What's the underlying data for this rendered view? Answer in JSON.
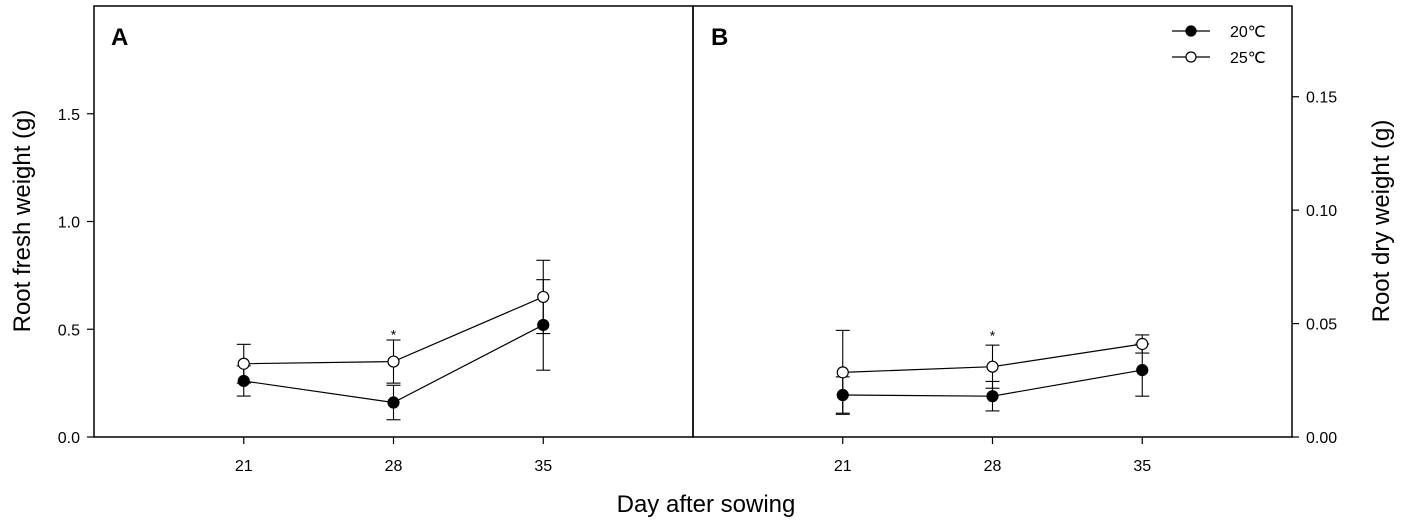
{
  "chart_data": [
    {
      "type": "line",
      "panel_label": "A",
      "xlabel": "Day after sowing",
      "ylabel": "Root fresh weight (g)",
      "y_axis_side": "left",
      "categories": [
        "21",
        "28",
        "35"
      ],
      "x": [
        21,
        28,
        35
      ],
      "xlim": [
        14,
        42
      ],
      "ylim": [
        0,
        2.0
      ],
      "yticks": [
        "0.0",
        "0.5",
        "1.0",
        "1.5"
      ],
      "ytick_values": [
        0,
        0.5,
        1.0,
        1.5
      ],
      "grid": false,
      "series": [
        {
          "name": "20℃",
          "marker": "filled-circle",
          "values": [
            0.26,
            0.16,
            0.52
          ],
          "errors": [
            0.07,
            0.08,
            0.21
          ]
        },
        {
          "name": "25℃",
          "marker": "open-circle",
          "values": [
            0.34,
            0.35,
            0.65
          ],
          "errors": [
            0.09,
            0.1,
            0.17
          ]
        }
      ],
      "annotations": [
        {
          "x": 28,
          "y": 0.49,
          "text": "*"
        }
      ]
    },
    {
      "type": "line",
      "panel_label": "B",
      "xlabel": "Day after sowing",
      "ylabel": "Root dry weight (g)",
      "y_axis_side": "right",
      "categories": [
        "21",
        "28",
        "35"
      ],
      "x": [
        21,
        28,
        35
      ],
      "xlim": [
        14,
        42
      ],
      "ylim": [
        0,
        0.19
      ],
      "yticks": [
        "0.00",
        "0.05",
        "0.10",
        "0.15"
      ],
      "ytick_values": [
        0,
        0.05,
        0.1,
        0.15
      ],
      "grid": false,
      "legend_position": "top-right",
      "series": [
        {
          "name": "20℃",
          "marker": "filled-circle",
          "values": [
            0.0185,
            0.018,
            0.0295
          ],
          "errors": [
            0.008,
            0.0065,
            0.0115
          ]
        },
        {
          "name": "25℃",
          "marker": "open-circle",
          "values": [
            0.0285,
            0.031,
            0.041
          ],
          "errors": [
            0.0185,
            0.0095,
            0.004
          ]
        }
      ],
      "annotations": [
        {
          "x": 28,
          "y": 0.046,
          "text": "*"
        }
      ]
    }
  ],
  "shared_xlabel": "Day after sowing",
  "legend": [
    {
      "label": "20℃",
      "marker": "filled-circle"
    },
    {
      "label": "25℃",
      "marker": "open-circle"
    }
  ],
  "colors": {
    "line": "#000000",
    "marker_fill_20": "#000000",
    "marker_fill_25": "#ffffff",
    "background": "#ffffff"
  }
}
